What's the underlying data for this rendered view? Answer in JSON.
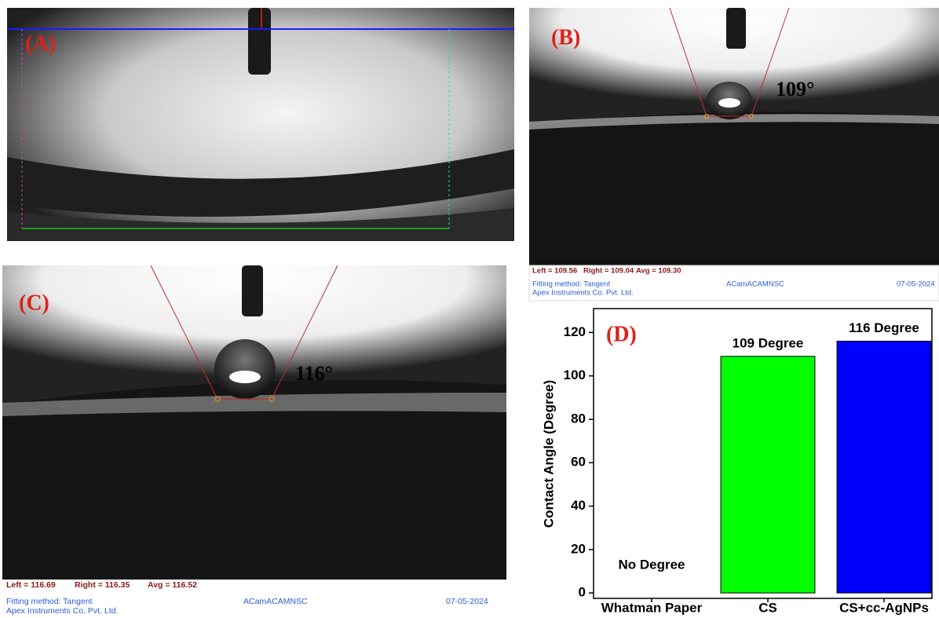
{
  "panels": {
    "a": {
      "label": "(A)"
    },
    "b": {
      "label": "(B)",
      "angle": "109°",
      "footer": {
        "left": "Left = 109.56",
        "right": "Right = 109.04",
        "avg": "Avg = 109.30",
        "method": "Fitting method: Tangent",
        "company": "Apex Instruments Co. Pvt. Ltd.",
        "camera": "ACamACAMNSC",
        "date": "07-05-2024"
      }
    },
    "c": {
      "label": "(C)",
      "angle": "116°",
      "footer": {
        "left": "Left = 116.69",
        "right": "Right = 116.35",
        "avg": "Avg = 116.52",
        "method": "Fitting method: Tangent",
        "company": "Apex Instruments Co. Pvt. Ltd.",
        "camera": "ACamACAMNSC",
        "date": "07-05-2024"
      }
    }
  },
  "chart_data": {
    "type": "bar",
    "label": "(D)",
    "y_label": "Contact Angle (Degree)",
    "categories": [
      "Whatman Paper",
      "CS",
      "CS+cc-AgNPs"
    ],
    "values": [
      0,
      109,
      116
    ],
    "value_labels": [
      "No Degree",
      "109 Degree",
      "116 Degree"
    ],
    "colors": [
      "#00ff00",
      "#00ff00",
      "#0000ff"
    ],
    "ylim": [
      -2.5,
      131
    ],
    "yticks": [
      0,
      20,
      40,
      60,
      80,
      100,
      120
    ]
  }
}
